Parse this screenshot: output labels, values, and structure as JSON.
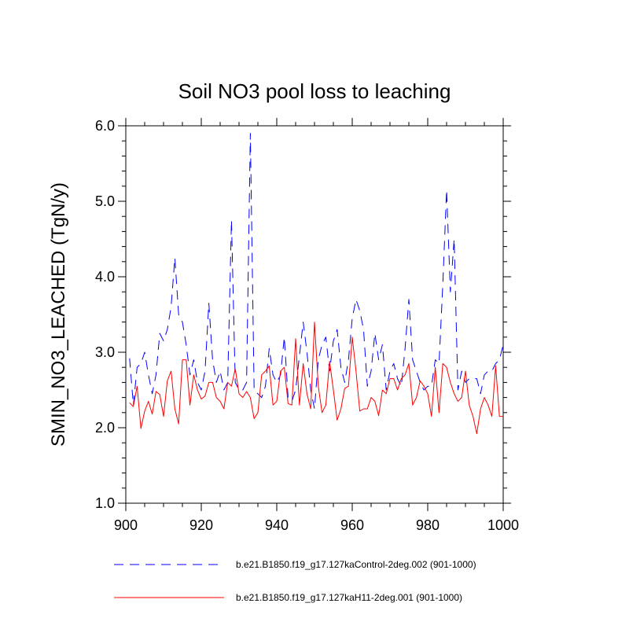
{
  "chart_data": {
    "type": "line",
    "title": "Soil NO3 pool loss to leaching",
    "xlabel": "",
    "ylabel": "SMIN_NO3_LEACHED  (TgN/y)",
    "xlim": [
      900,
      1000
    ],
    "ylim": [
      1.0,
      6.0
    ],
    "x_ticks": [
      900,
      920,
      940,
      960,
      980,
      1000
    ],
    "x_tick_labels": [
      "900",
      "920",
      "940",
      "960",
      "980",
      "1000"
    ],
    "y_ticks": [
      1.0,
      2.0,
      3.0,
      4.0,
      5.0,
      6.0
    ],
    "y_tick_labels": [
      "1.0",
      "2.0",
      "3.0",
      "4.0",
      "5.0",
      "6.0"
    ],
    "grid": false,
    "legend_position": "bottom",
    "x": [
      901,
      902,
      903,
      904,
      905,
      906,
      907,
      908,
      909,
      910,
      911,
      912,
      913,
      914,
      915,
      916,
      917,
      918,
      919,
      920,
      921,
      922,
      923,
      924,
      925,
      926,
      927,
      928,
      929,
      930,
      931,
      932,
      933,
      934,
      935,
      936,
      937,
      938,
      939,
      940,
      941,
      942,
      943,
      944,
      945,
      946,
      947,
      948,
      949,
      950,
      951,
      952,
      953,
      954,
      955,
      956,
      957,
      958,
      959,
      960,
      961,
      962,
      963,
      964,
      965,
      966,
      967,
      968,
      969,
      970,
      971,
      972,
      973,
      974,
      975,
      976,
      977,
      978,
      979,
      980,
      981,
      982,
      983,
      984,
      985,
      986,
      987,
      988,
      989,
      990,
      991,
      992,
      993,
      994,
      995,
      996,
      997,
      998,
      999,
      1000
    ],
    "series": [
      {
        "name": "b.e21.B1850.f19_g17.127kaControl-2deg.002 (901-1000)",
        "color": "#0000ff",
        "dash": "dashed",
        "values": [
          2.92,
          2.3,
          2.8,
          2.85,
          3.0,
          2.7,
          2.45,
          2.7,
          3.25,
          3.15,
          3.3,
          3.6,
          4.25,
          3.5,
          3.4,
          3.1,
          2.7,
          2.9,
          2.6,
          2.5,
          2.75,
          3.65,
          2.9,
          2.6,
          2.75,
          2.5,
          2.6,
          4.75,
          2.6,
          2.5,
          2.5,
          2.6,
          5.9,
          2.5,
          2.45,
          2.4,
          2.55,
          3.05,
          2.7,
          2.6,
          2.7,
          3.2,
          2.4,
          2.35,
          2.5,
          2.95,
          3.4,
          3.0,
          2.5,
          2.25,
          2.9,
          3.1,
          3.2,
          2.75,
          3.15,
          3.3,
          2.8,
          2.6,
          2.9,
          3.45,
          3.7,
          3.55,
          3.3,
          2.55,
          2.75,
          3.25,
          2.9,
          3.1,
          2.5,
          2.75,
          2.85,
          2.65,
          2.55,
          3.05,
          3.7,
          2.9,
          2.75,
          2.6,
          2.5,
          2.55,
          2.55,
          2.9,
          2.85,
          3.9,
          5.15,
          3.8,
          4.5,
          2.5,
          2.75,
          2.6,
          2.65,
          2.65,
          2.65,
          2.45,
          2.7,
          2.75,
          2.75,
          2.85,
          2.9,
          3.1
        ]
      },
      {
        "name": "b.e21.B1850.f19_g17.127kaH11-2deg.001 (901-1000)",
        "color": "#ff0000",
        "dash": "solid",
        "values": [
          2.33,
          2.28,
          2.55,
          1.99,
          2.22,
          2.35,
          2.18,
          2.48,
          2.44,
          2.15,
          2.62,
          2.75,
          2.25,
          2.05,
          2.9,
          2.9,
          2.3,
          2.7,
          2.5,
          2.38,
          2.42,
          2.6,
          2.6,
          2.4,
          2.35,
          2.25,
          2.6,
          2.55,
          2.78,
          2.45,
          2.4,
          2.48,
          2.4,
          2.12,
          2.2,
          2.7,
          2.75,
          2.82,
          2.3,
          2.35,
          2.75,
          2.8,
          2.32,
          2.3,
          3.18,
          2.3,
          2.85,
          2.45,
          2.25,
          3.4,
          2.55,
          2.2,
          2.3,
          2.88,
          2.5,
          2.1,
          2.25,
          2.52,
          2.55,
          3.2,
          2.75,
          2.22,
          2.25,
          2.25,
          2.4,
          2.35,
          2.16,
          2.5,
          2.45,
          2.65,
          2.65,
          2.5,
          2.65,
          2.7,
          2.85,
          2.3,
          2.4,
          2.62,
          2.55,
          2.45,
          2.15,
          2.8,
          2.2,
          2.85,
          2.8,
          2.6,
          2.45,
          2.35,
          2.4,
          2.75,
          2.3,
          2.15,
          1.92,
          2.25,
          2.4,
          2.3,
          2.15,
          2.82,
          2.15,
          2.15
        ]
      }
    ]
  }
}
